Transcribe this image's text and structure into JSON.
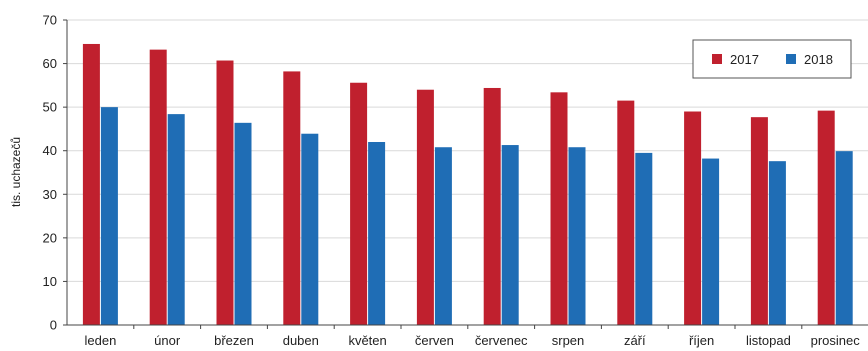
{
  "chart_data": {
    "type": "bar",
    "title": "",
    "xlabel": "",
    "ylabel": "tis. uchazečů",
    "ylim": [
      0,
      70
    ],
    "yticks": [
      0,
      10,
      20,
      30,
      40,
      50,
      60,
      70
    ],
    "grid": true,
    "legend_position": "top-right",
    "categories": [
      "leden",
      "únor",
      "březen",
      "duben",
      "květen",
      "červen",
      "červenec",
      "srpen",
      "září",
      "říjen",
      "listopad",
      "prosinec"
    ],
    "series": [
      {
        "name": "2017",
        "color": "#c0202e",
        "values": [
          64.5,
          63.2,
          60.7,
          58.2,
          55.6,
          54.0,
          54.4,
          53.4,
          51.5,
          49.0,
          47.7,
          49.2
        ]
      },
      {
        "name": "2018",
        "color": "#1f6db5",
        "values": [
          50.0,
          48.4,
          46.4,
          43.9,
          42.0,
          40.8,
          41.3,
          40.8,
          39.5,
          38.2,
          37.6,
          39.9
        ]
      }
    ]
  }
}
